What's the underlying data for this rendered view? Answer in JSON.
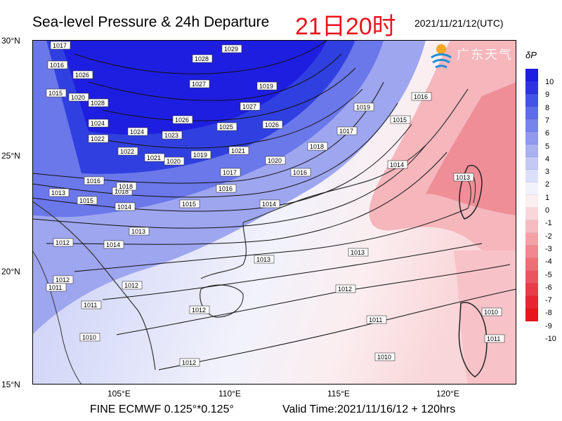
{
  "header": {
    "title": "Sea-level Pressure & 24h Departure",
    "center_title": "21日20时",
    "datetime": "2021/11/21/12(UTC)"
  },
  "map": {
    "lat_labels": [
      "30°N",
      "25°N",
      "20°N",
      "15°N"
    ],
    "lon_labels": [
      "105°E",
      "110°E",
      "115°E",
      "120°E"
    ],
    "isobar_labels": [
      "1017",
      "1016",
      "1015",
      "1026",
      "1020",
      "1028",
      "1028",
      "1029",
      "1027",
      "1027",
      "1026",
      "1025",
      "1026",
      "1024",
      "1024",
      "1023",
      "1022",
      "1022",
      "1021",
      "1020",
      "1019",
      "1021",
      "1020",
      "1018",
      "1019",
      "1017",
      "1016",
      "1018",
      "1015",
      "1014",
      "1013",
      "1013",
      "1012",
      "1014",
      "1013",
      "1014",
      "1015",
      "1016",
      "1016",
      "1017",
      "1018",
      "1019",
      "1016",
      "1015",
      "1014",
      "1013",
      "1013",
      "1012",
      "1012",
      "1011",
      "1012",
      "1011",
      "1010",
      "1012",
      "1011",
      "1010",
      "1010",
      "1011",
      "1012"
    ],
    "colorscale": [
      "#1e1ee0",
      "#2f34e2",
      "#4552e6",
      "#5d6ce9",
      "#7784eb",
      "#9199ee",
      "#a9b1f1",
      "#c3c8f5",
      "#dcdff9",
      "#f1f2fb",
      "#fbeef0",
      "#f9d6d9",
      "#f7bcc1",
      "#f3a1a7",
      "#f1878f",
      "#ee6e76",
      "#eb5560",
      "#e83c49",
      "#e62432",
      "#e8141e"
    ]
  },
  "colorbar": {
    "title": "δP",
    "ticks": [
      "10",
      "9",
      "8",
      "7",
      "6",
      "5",
      "4",
      "3",
      "2",
      "1",
      "0",
      "-1",
      "-2",
      "-3",
      "-4",
      "-5",
      "-6",
      "-7",
      "-8",
      "-9",
      "-10"
    ]
  },
  "logo": {
    "text": "广东天气"
  },
  "footer": {
    "model": "FINE ECMWF 0.125°*0.125°",
    "valid": "Valid Time:2021/11/16/12 + 120hrs"
  }
}
